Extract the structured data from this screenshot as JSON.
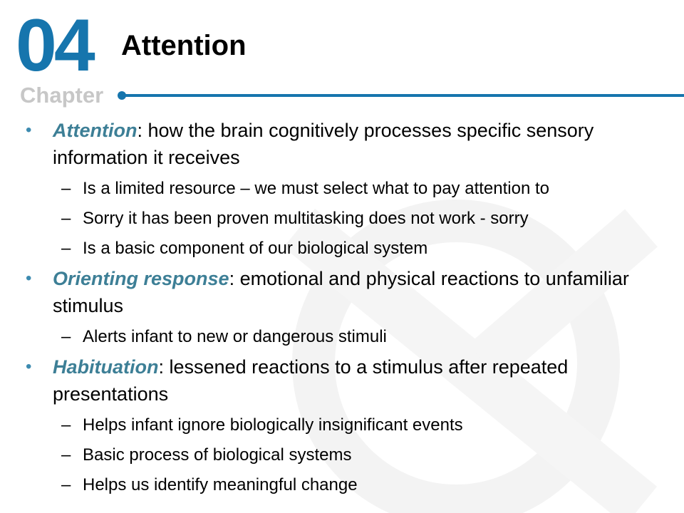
{
  "header": {
    "chapter_number": "04",
    "chapter_word": "Chapter",
    "title": "Attention",
    "accent_color": "#1675ad"
  },
  "bullets": [
    {
      "term": "Attention",
      "definition": ": how the brain cognitively processes specific sensory information it receives",
      "subpoints": [
        "Is a limited resource – we must select what to pay attention to",
        "Sorry it has been proven multitasking does not work - sorry",
        "Is a basic component of our biological system"
      ]
    },
    {
      "term": "Orienting response",
      "definition": ": emotional and physical reactions to unfamiliar stimulus",
      "subpoints": [
        "Alerts infant to new or dangerous stimuli"
      ]
    },
    {
      "term": "Habituation",
      "definition": ": lessened reactions to a stimulus after repeated presentations",
      "subpoints": [
        "Helps infant ignore biologically insignificant events",
        "Basic process of biological systems",
        "Helps us identify meaningful change"
      ]
    }
  ]
}
